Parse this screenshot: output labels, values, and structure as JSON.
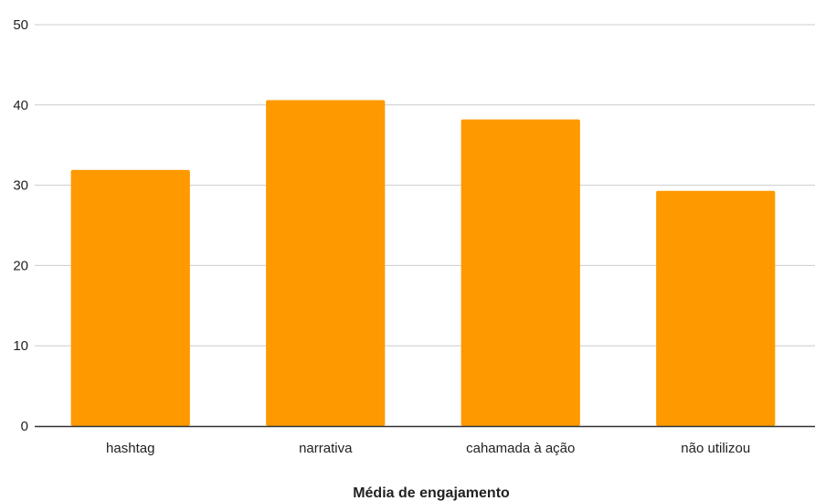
{
  "chart_data": {
    "type": "bar",
    "title": "",
    "xlabel": "Média de engajamento",
    "ylabel": "",
    "categories": [
      "hashtag",
      "narrativa",
      "cahamada à ação",
      "não utilizou"
    ],
    "values": [
      31.9,
      40.6,
      38.2,
      29.3
    ],
    "ylim": [
      0,
      50
    ],
    "yticks": [
      "0",
      "10",
      "20",
      "30",
      "40",
      "50"
    ],
    "grid": true,
    "legend": "none",
    "bar_color": "#ff9900",
    "grid_color": "#cccccc",
    "axis_color": "#333333"
  }
}
